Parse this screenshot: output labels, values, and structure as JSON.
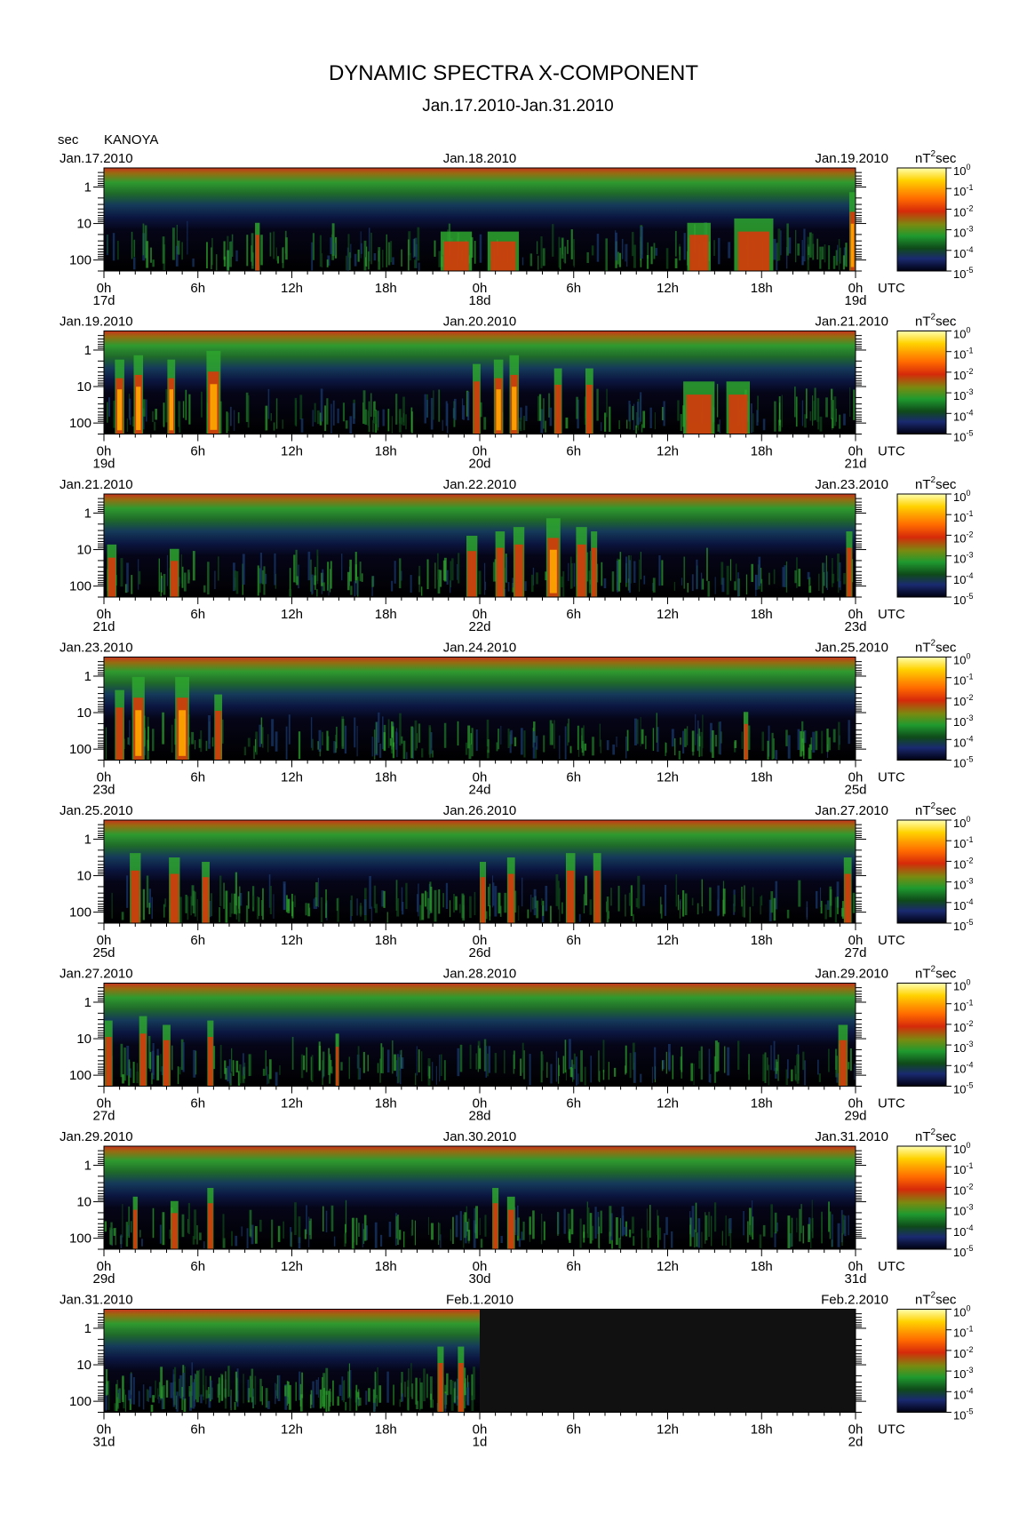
{
  "title": "DYNAMIC SPECTRA X-COMPONENT",
  "subtitle": "Jan.17.2010-Jan.31.2010",
  "y_unit": "sec",
  "station": "KANOYA",
  "colorbar_unit": "nT",
  "colorbar_unit_exp": "2",
  "colorbar_unit_suffix": "sec",
  "utc_label": "UTC",
  "colors": {
    "scale": [
      "#000000",
      "#0a0a3a",
      "#1a3a6a",
      "#0f5a1a",
      "#2ea62e",
      "#7a9a10",
      "#d63a0a",
      "#ff6a00",
      "#ffc200",
      "#ffff66"
    ],
    "background": "#ffffff"
  },
  "chart_data": {
    "type": "heatmap",
    "colorbar_ticks": [
      {
        "base": "10",
        "exp": "0"
      },
      {
        "base": "10",
        "exp": "-1"
      },
      {
        "base": "10",
        "exp": "-2"
      },
      {
        "base": "10",
        "exp": "-3"
      },
      {
        "base": "10",
        "exp": "-4"
      },
      {
        "base": "10",
        "exp": "-5"
      }
    ],
    "y_ticks": [
      "1",
      "10",
      "100"
    ],
    "x_ticks": [
      "0h",
      "6h",
      "12h",
      "18h",
      "0h",
      "6h",
      "12h",
      "18h",
      "0h"
    ],
    "panels": [
      {
        "date_left": "Jan.17.2010",
        "date_mid": "Jan.18.2010",
        "date_right": "Jan.19.2010",
        "day_left": "17d",
        "day_mid": "18d",
        "day_right": "19d",
        "events": [
          {
            "hour": 9.8,
            "width": 0.3,
            "level": 0.55
          },
          {
            "hour": 22.5,
            "width": 2.0,
            "level": 0.45
          },
          {
            "hour": 25.5,
            "width": 2.0,
            "level": 0.45
          },
          {
            "hour": 38.0,
            "width": 1.5,
            "level": 0.55
          },
          {
            "hour": 41.5,
            "width": 2.5,
            "level": 0.6
          },
          {
            "hour": 47.8,
            "width": 0.4,
            "level": 0.9
          }
        ],
        "data_end_hour": 48
      },
      {
        "date_left": "Jan.19.2010",
        "date_mid": "Jan.20.2010",
        "date_right": "Jan.21.2010",
        "day_left": "19d",
        "day_mid": "20d",
        "day_right": "21d",
        "events": [
          {
            "hour": 1.0,
            "width": 0.6,
            "level": 0.85
          },
          {
            "hour": 2.2,
            "width": 0.6,
            "level": 0.9
          },
          {
            "hour": 4.3,
            "width": 0.5,
            "level": 0.85
          },
          {
            "hour": 7.0,
            "width": 0.9,
            "level": 0.95
          },
          {
            "hour": 23.8,
            "width": 0.5,
            "level": 0.8
          },
          {
            "hour": 25.2,
            "width": 0.6,
            "level": 0.85
          },
          {
            "hour": 26.2,
            "width": 0.6,
            "level": 0.9
          },
          {
            "hour": 29.0,
            "width": 0.5,
            "level": 0.75
          },
          {
            "hour": 31.0,
            "width": 0.5,
            "level": 0.75
          },
          {
            "hour": 38.0,
            "width": 2.0,
            "level": 0.6
          },
          {
            "hour": 40.5,
            "width": 1.5,
            "level": 0.6
          }
        ],
        "data_end_hour": 48
      },
      {
        "date_left": "Jan.21.2010",
        "date_mid": "Jan.22.2010",
        "date_right": "Jan.23.2010",
        "day_left": "21d",
        "day_mid": "22d",
        "day_right": "23d",
        "events": [
          {
            "hour": 0.5,
            "width": 0.6,
            "level": 0.6
          },
          {
            "hour": 4.5,
            "width": 0.6,
            "level": 0.55
          },
          {
            "hour": 23.5,
            "width": 0.7,
            "level": 0.7
          },
          {
            "hour": 25.3,
            "width": 0.6,
            "level": 0.75
          },
          {
            "hour": 26.5,
            "width": 0.7,
            "level": 0.8
          },
          {
            "hour": 28.7,
            "width": 0.9,
            "level": 0.9
          },
          {
            "hour": 30.5,
            "width": 0.7,
            "level": 0.8
          },
          {
            "hour": 31.3,
            "width": 0.4,
            "level": 0.75
          },
          {
            "hour": 47.6,
            "width": 0.4,
            "level": 0.75
          }
        ],
        "data_end_hour": 48
      },
      {
        "date_left": "Jan.23.2010",
        "date_mid": "Jan.24.2010",
        "date_right": "Jan.25.2010",
        "day_left": "23d",
        "day_mid": "24d",
        "day_right": "25d",
        "events": [
          {
            "hour": 1.0,
            "width": 0.6,
            "level": 0.8
          },
          {
            "hour": 2.2,
            "width": 0.8,
            "level": 0.95
          },
          {
            "hour": 5.0,
            "width": 0.9,
            "level": 0.95
          },
          {
            "hour": 7.3,
            "width": 0.5,
            "level": 0.75
          },
          {
            "hour": 41.0,
            "width": 0.3,
            "level": 0.55
          }
        ],
        "data_end_hour": 48
      },
      {
        "date_left": "Jan.25.2010",
        "date_mid": "Jan.26.2010",
        "date_right": "Jan.27.2010",
        "day_left": "25d",
        "day_mid": "26d",
        "day_right": "27d",
        "events": [
          {
            "hour": 2.0,
            "width": 0.7,
            "level": 0.8
          },
          {
            "hour": 4.5,
            "width": 0.7,
            "level": 0.75
          },
          {
            "hour": 6.5,
            "width": 0.5,
            "level": 0.7
          },
          {
            "hour": 24.2,
            "width": 0.4,
            "level": 0.7
          },
          {
            "hour": 26.0,
            "width": 0.5,
            "level": 0.75
          },
          {
            "hour": 29.8,
            "width": 0.6,
            "level": 0.8
          },
          {
            "hour": 31.5,
            "width": 0.5,
            "level": 0.8
          },
          {
            "hour": 47.5,
            "width": 0.5,
            "level": 0.75
          }
        ],
        "data_end_hour": 48
      },
      {
        "date_left": "Jan.27.2010",
        "date_mid": "Jan.28.2010",
        "date_right": "Jan.29.2010",
        "day_left": "27d",
        "day_mid": "28d",
        "day_right": "29d",
        "events": [
          {
            "hour": 0.3,
            "width": 0.5,
            "level": 0.75
          },
          {
            "hour": 2.5,
            "width": 0.5,
            "level": 0.8
          },
          {
            "hour": 4.0,
            "width": 0.5,
            "level": 0.7
          },
          {
            "hour": 6.8,
            "width": 0.4,
            "level": 0.75
          },
          {
            "hour": 14.9,
            "width": 0.2,
            "level": 0.6
          },
          {
            "hour": 47.2,
            "width": 0.6,
            "level": 0.7
          }
        ],
        "data_end_hour": 48
      },
      {
        "date_left": "Jan.29.2010",
        "date_mid": "Jan.30.2010",
        "date_right": "Jan.31.2010",
        "day_left": "29d",
        "day_mid": "30d",
        "day_right": "31d",
        "events": [
          {
            "hour": 2.0,
            "width": 0.3,
            "level": 0.6
          },
          {
            "hour": 4.5,
            "width": 0.5,
            "level": 0.55
          },
          {
            "hour": 6.8,
            "width": 0.4,
            "level": 0.7
          },
          {
            "hour": 25.0,
            "width": 0.4,
            "level": 0.7
          },
          {
            "hour": 26.0,
            "width": 0.5,
            "level": 0.6
          }
        ],
        "data_end_hour": 48
      },
      {
        "date_left": "Jan.31.2010",
        "date_mid": "Feb.1.2010",
        "date_right": "Feb.2.2010",
        "day_left": "31d",
        "day_mid": "1d",
        "day_right": "2d",
        "events": [
          {
            "hour": 21.5,
            "width": 0.4,
            "level": 0.75
          },
          {
            "hour": 22.8,
            "width": 0.4,
            "level": 0.75
          }
        ],
        "data_end_hour": 24
      }
    ]
  }
}
